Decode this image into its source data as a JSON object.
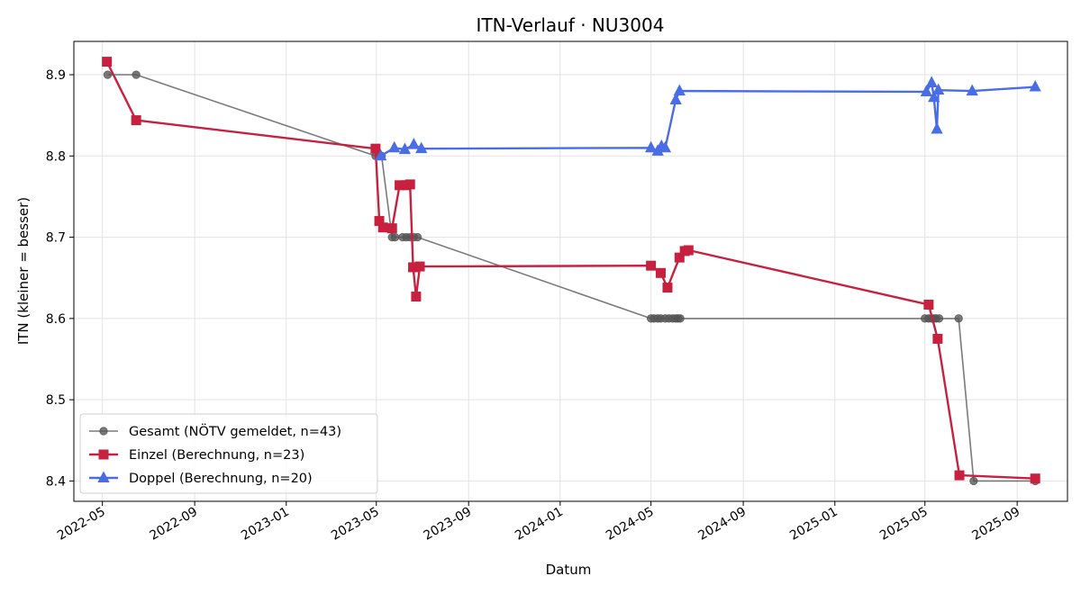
{
  "chart_data": {
    "type": "line",
    "title": "ITN-Verlauf · NU3004",
    "xlabel": "Datum",
    "ylabel": "ITN  (kleiner = besser)",
    "x_type": "date",
    "xlim": [
      "2022-03-24",
      "2025-11-07"
    ],
    "ylim": [
      8.375,
      8.941
    ],
    "grid": true,
    "legend_position": "lower-left",
    "x_ticks": [
      "2022-05",
      "2022-09",
      "2023-01",
      "2023-05",
      "2023-09",
      "2024-01",
      "2024-05",
      "2024-09",
      "2025-01",
      "2025-05",
      "2025-09"
    ],
    "y_ticks": [
      8.4,
      8.5,
      8.6,
      8.7,
      8.8,
      8.9
    ],
    "series": [
      {
        "name": "Gesamt (NÖTV gemeldet, n=43)",
        "color": "#555555",
        "marker": "circle",
        "points": [
          [
            "2022-05-08",
            8.9
          ],
          [
            "2022-06-15",
            8.9
          ],
          [
            "2023-04-30",
            8.8
          ],
          [
            "2023-05-05",
            8.8
          ],
          [
            "2023-05-08",
            8.8
          ],
          [
            "2023-05-22",
            8.7
          ],
          [
            "2023-05-26",
            8.7
          ],
          [
            "2023-06-05",
            8.7
          ],
          [
            "2023-06-10",
            8.7
          ],
          [
            "2023-06-15",
            8.7
          ],
          [
            "2023-06-20",
            8.7
          ],
          [
            "2023-06-25",
            8.7
          ],
          [
            "2024-05-01",
            8.6
          ],
          [
            "2024-05-05",
            8.6
          ],
          [
            "2024-05-10",
            8.6
          ],
          [
            "2024-05-14",
            8.6
          ],
          [
            "2024-05-20",
            8.6
          ],
          [
            "2024-05-25",
            8.6
          ],
          [
            "2024-05-30",
            8.6
          ],
          [
            "2024-06-03",
            8.6
          ],
          [
            "2024-06-06",
            8.6
          ],
          [
            "2024-06-09",
            8.6
          ],
          [
            "2025-05-01",
            8.6
          ],
          [
            "2025-05-06",
            8.6
          ],
          [
            "2025-05-10",
            8.6
          ],
          [
            "2025-05-13",
            8.6
          ],
          [
            "2025-05-16",
            8.6
          ],
          [
            "2025-05-20",
            8.6
          ],
          [
            "2025-06-15",
            8.6
          ],
          [
            "2025-07-05",
            8.4
          ],
          [
            "2025-09-25",
            8.4
          ]
        ]
      },
      {
        "name": "Einzel (Berechnung, n=23)",
        "color": "#c7213f",
        "marker": "square",
        "points": [
          [
            "2022-05-07",
            8.916
          ],
          [
            "2022-06-15",
            8.844
          ],
          [
            "2023-04-30",
            8.809
          ],
          [
            "2023-05-05",
            8.72
          ],
          [
            "2023-05-10",
            8.712
          ],
          [
            "2023-05-22",
            8.711
          ],
          [
            "2023-06-01",
            8.764
          ],
          [
            "2023-06-10",
            8.764
          ],
          [
            "2023-06-15",
            8.765
          ],
          [
            "2023-06-19",
            8.663
          ],
          [
            "2023-06-23",
            8.627
          ],
          [
            "2023-06-28",
            8.664
          ],
          [
            "2024-05-01",
            8.665
          ],
          [
            "2024-05-14",
            8.656
          ],
          [
            "2024-05-23",
            8.638
          ],
          [
            "2024-06-08",
            8.675
          ],
          [
            "2024-06-15",
            8.683
          ],
          [
            "2024-06-20",
            8.684
          ],
          [
            "2025-05-06",
            8.617
          ],
          [
            "2025-05-18",
            8.575
          ],
          [
            "2025-06-16",
            8.407
          ],
          [
            "2025-09-25",
            8.403
          ]
        ]
      },
      {
        "name": "Doppel (Berechnung, n=20)",
        "color": "#4a6de5",
        "marker": "triangle",
        "points": [
          [
            "2023-05-07",
            8.8
          ],
          [
            "2023-05-25",
            8.81
          ],
          [
            "2023-06-08",
            8.808
          ],
          [
            "2023-06-20",
            8.814
          ],
          [
            "2023-06-30",
            8.809
          ],
          [
            "2024-05-01",
            8.81
          ],
          [
            "2024-05-10",
            8.806
          ],
          [
            "2024-05-15",
            8.812
          ],
          [
            "2024-05-20",
            8.81
          ],
          [
            "2024-06-03",
            8.869
          ],
          [
            "2024-06-08",
            8.88
          ],
          [
            "2025-05-03",
            8.879
          ],
          [
            "2025-05-10",
            8.89
          ],
          [
            "2025-05-13",
            8.872
          ],
          [
            "2025-05-17",
            8.833
          ],
          [
            "2025-05-19",
            8.881
          ],
          [
            "2025-07-03",
            8.88
          ],
          [
            "2025-09-25",
            8.885
          ]
        ]
      }
    ]
  }
}
